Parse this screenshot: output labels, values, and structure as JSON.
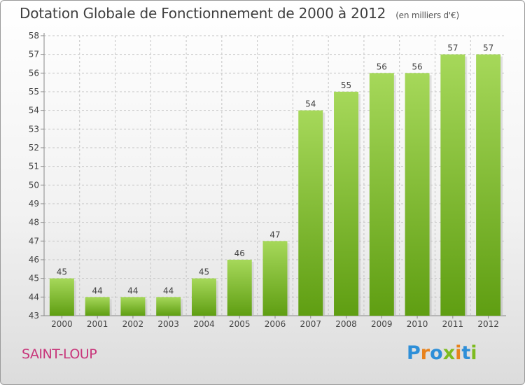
{
  "header": {
    "title": "Dotation Globale de Fonctionnement de 2000 à 2012",
    "unit": "(en milliers d'€)"
  },
  "footer": {
    "city": "SAINT-LOUP",
    "logo": "Proxiti"
  },
  "colors": {
    "bar_top": "#a6d85a",
    "bar_bottom": "#5f9e12",
    "logo": [
      "#2e8fd8",
      "#e8821c",
      "#2e8fd8",
      "#7dbb1f",
      "#e8821c",
      "#2e8fd8",
      "#7dbb1f"
    ]
  },
  "chart_data": {
    "type": "bar",
    "categories": [
      "2000",
      "2001",
      "2002",
      "2003",
      "2004",
      "2005",
      "2006",
      "2007",
      "2008",
      "2009",
      "2010",
      "2011",
      "2012"
    ],
    "values": [
      45,
      44,
      44,
      44,
      45,
      46,
      47,
      54,
      55,
      56,
      56,
      57,
      57
    ],
    "title": "Dotation Globale de Fonctionnement de 2000 à 2012",
    "ylim": [
      43,
      58
    ],
    "yticks": [
      43,
      44,
      45,
      46,
      47,
      48,
      49,
      50,
      51,
      52,
      53,
      54,
      55,
      56,
      57,
      58
    ],
    "grid": true,
    "data_labels": true
  }
}
